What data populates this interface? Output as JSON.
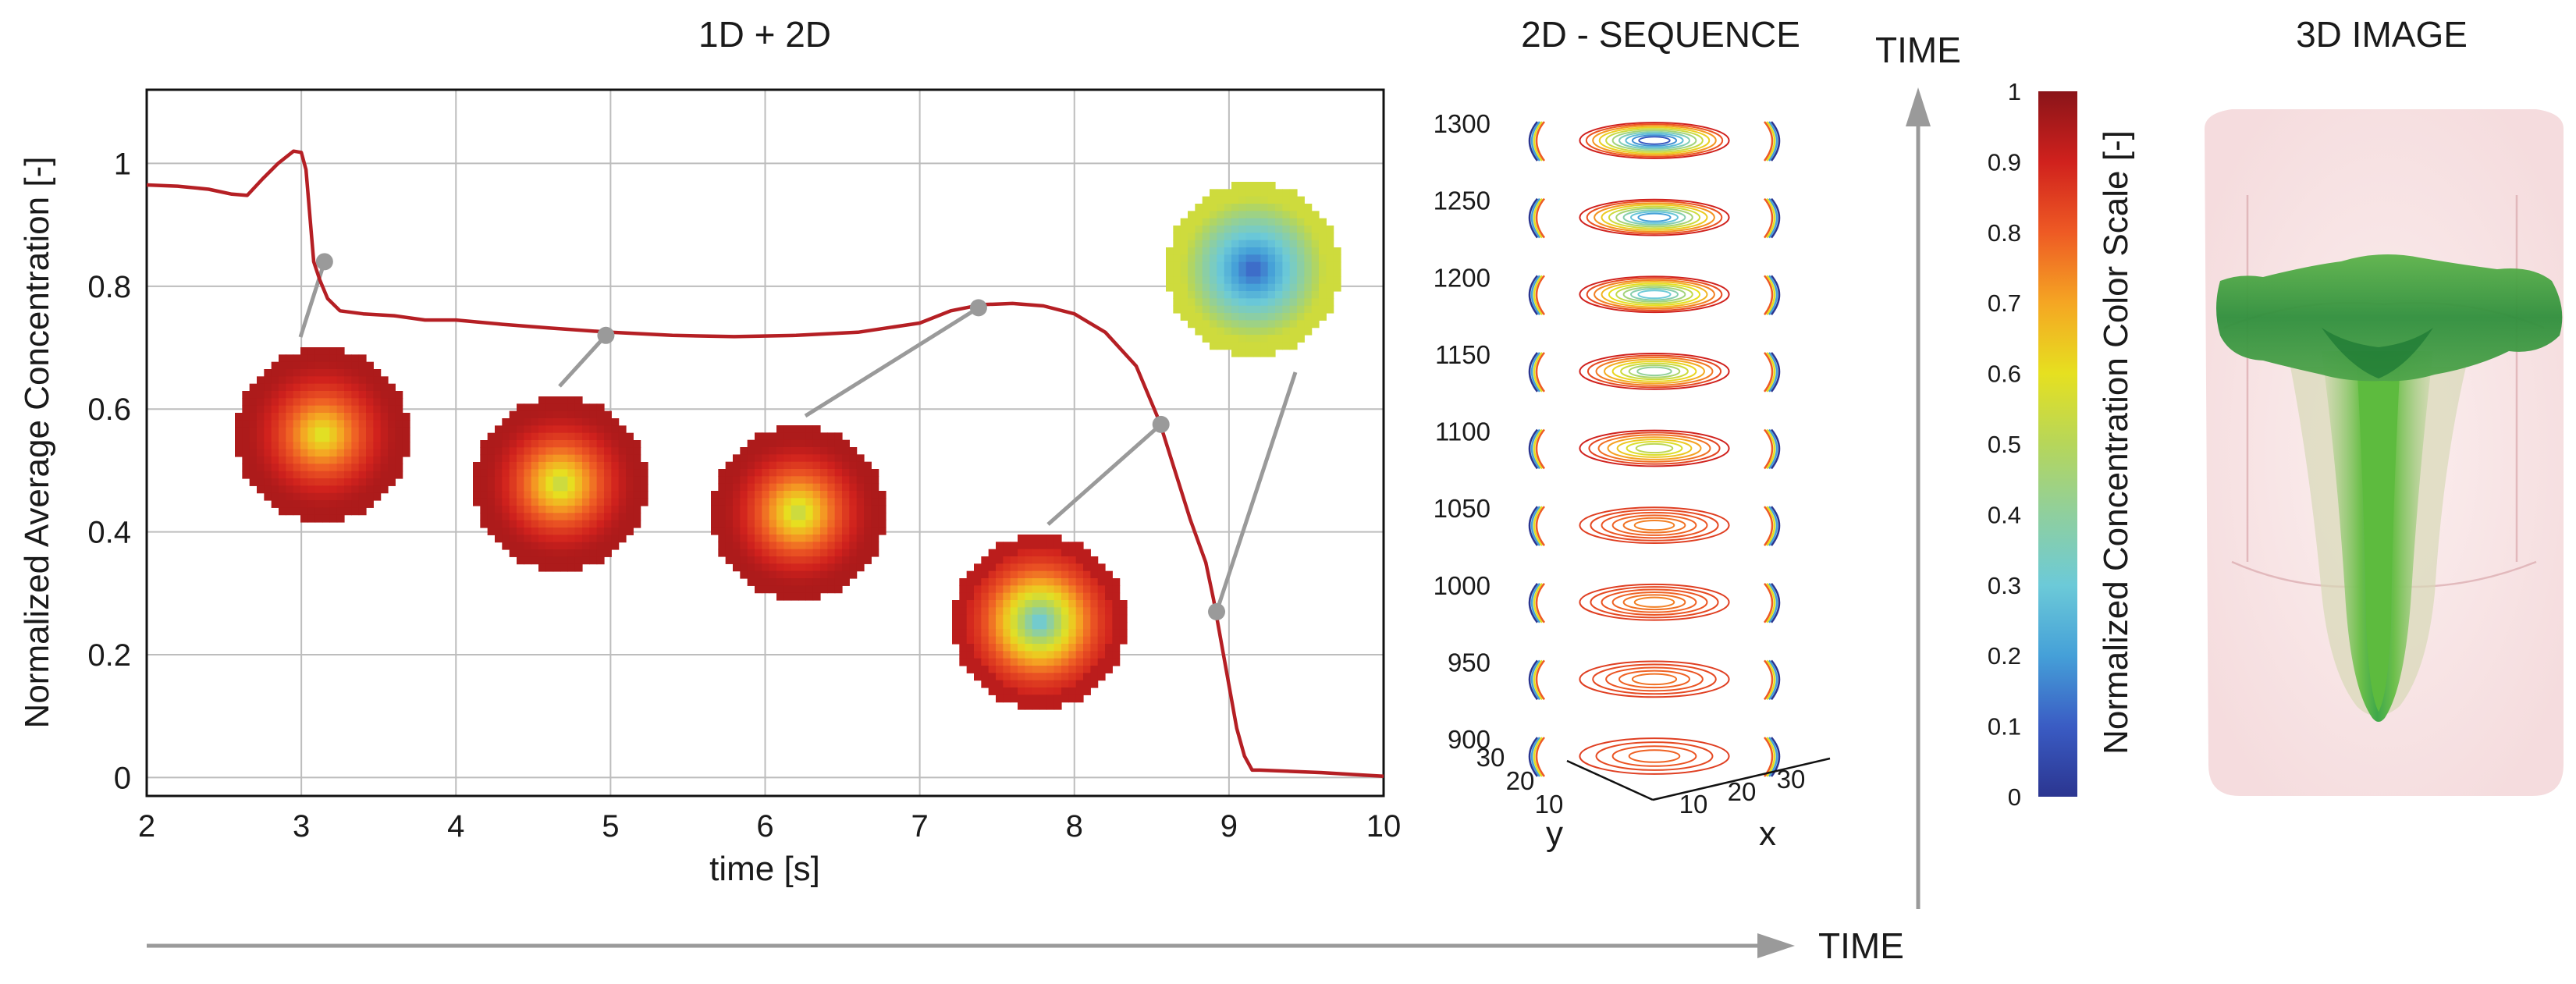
{
  "panels": {
    "left_title": "1D + 2D",
    "middle_title": "2D - SEQUENCE",
    "right_title": "3D IMAGE",
    "time_arrow_h": "TIME",
    "time_arrow_v": "TIME"
  },
  "chart_data": [
    {
      "type": "line",
      "title": "1D + 2D",
      "xlabel": "time [s]",
      "ylabel": "Normalized Average Concentration [-]",
      "xlim": [
        2,
        10
      ],
      "ylim": [
        -0.03,
        1.12
      ],
      "grid": true,
      "xticks": [
        2,
        3,
        4,
        5,
        6,
        7,
        8,
        9,
        10
      ],
      "yticks": [
        0,
        0.2,
        0.4,
        0.6,
        0.8,
        1
      ],
      "ytick_labels": [
        "0",
        "0.2",
        "0.4",
        "0.6",
        "0.8",
        "1"
      ],
      "series": [
        {
          "name": "Normalized average concentration",
          "color": "#b51f24",
          "x": [
            2.0,
            2.2,
            2.4,
            2.55,
            2.65,
            2.75,
            2.85,
            2.95,
            3.0,
            3.03,
            3.08,
            3.12,
            3.17,
            3.25,
            3.4,
            3.6,
            3.8,
            4.0,
            4.3,
            4.6,
            5.0,
            5.4,
            5.8,
            6.2,
            6.6,
            7.0,
            7.2,
            7.4,
            7.6,
            7.8,
            8.0,
            8.2,
            8.4,
            8.55,
            8.65,
            8.75,
            8.85,
            8.9,
            8.95,
            9.0,
            9.05,
            9.1,
            9.15,
            9.2,
            9.4,
            9.6,
            9.8,
            10.0
          ],
          "y": [
            0.965,
            0.963,
            0.958,
            0.95,
            0.948,
            0.975,
            1.0,
            1.02,
            1.018,
            0.99,
            0.84,
            0.81,
            0.78,
            0.76,
            0.755,
            0.752,
            0.745,
            0.745,
            0.738,
            0.732,
            0.725,
            0.72,
            0.718,
            0.72,
            0.725,
            0.74,
            0.76,
            0.77,
            0.772,
            0.768,
            0.755,
            0.725,
            0.67,
            0.58,
            0.5,
            0.42,
            0.35,
            0.29,
            0.22,
            0.15,
            0.08,
            0.035,
            0.012,
            0.012,
            0.01,
            0.008,
            0.005,
            0.002
          ]
        }
      ],
      "markers": [
        {
          "x": 3.15,
          "y": 0.84
        },
        {
          "x": 4.97,
          "y": 0.72
        },
        {
          "x": 7.38,
          "y": 0.765
        },
        {
          "x": 8.56,
          "y": 0.575
        },
        {
          "x": 8.92,
          "y": 0.27
        }
      ],
      "inset_images": [
        {
          "name": "slice-t3",
          "min_value": 0.55,
          "max_value": 0.95
        },
        {
          "name": "slice-t5",
          "min_value": 0.5,
          "max_value": 0.95
        },
        {
          "name": "slice-t7",
          "min_value": 0.5,
          "max_value": 0.95
        },
        {
          "name": "slice-t8.5",
          "min_value": 0.25,
          "max_value": 0.9
        },
        {
          "name": "slice-t9",
          "min_value": 0.1,
          "max_value": 0.55
        }
      ]
    },
    {
      "type": "contour-sequence",
      "title": "2D - SEQUENCE",
      "z_ticks": [
        900,
        950,
        1000,
        1050,
        1100,
        1150,
        1200,
        1250,
        1300
      ],
      "x_label": "x",
      "y_label": "y",
      "x_ticks": [
        10,
        20,
        30
      ],
      "y_ticks": [
        10,
        20,
        30
      ]
    },
    {
      "type": "colorbar",
      "label": "Normalized Concentration Color Scale [-]",
      "range": [
        0,
        1
      ],
      "ticks": [
        0,
        0.1,
        0.2,
        0.3,
        0.4,
        0.5,
        0.6,
        0.7,
        0.8,
        0.9,
        1
      ],
      "colors": [
        "#2b3590",
        "#3a5cc4",
        "#45a0d8",
        "#6ccad8",
        "#8fcf9e",
        "#b6d65a",
        "#e6e020",
        "#f5a623",
        "#ee5a24",
        "#d0211d",
        "#8a1419"
      ]
    }
  ]
}
